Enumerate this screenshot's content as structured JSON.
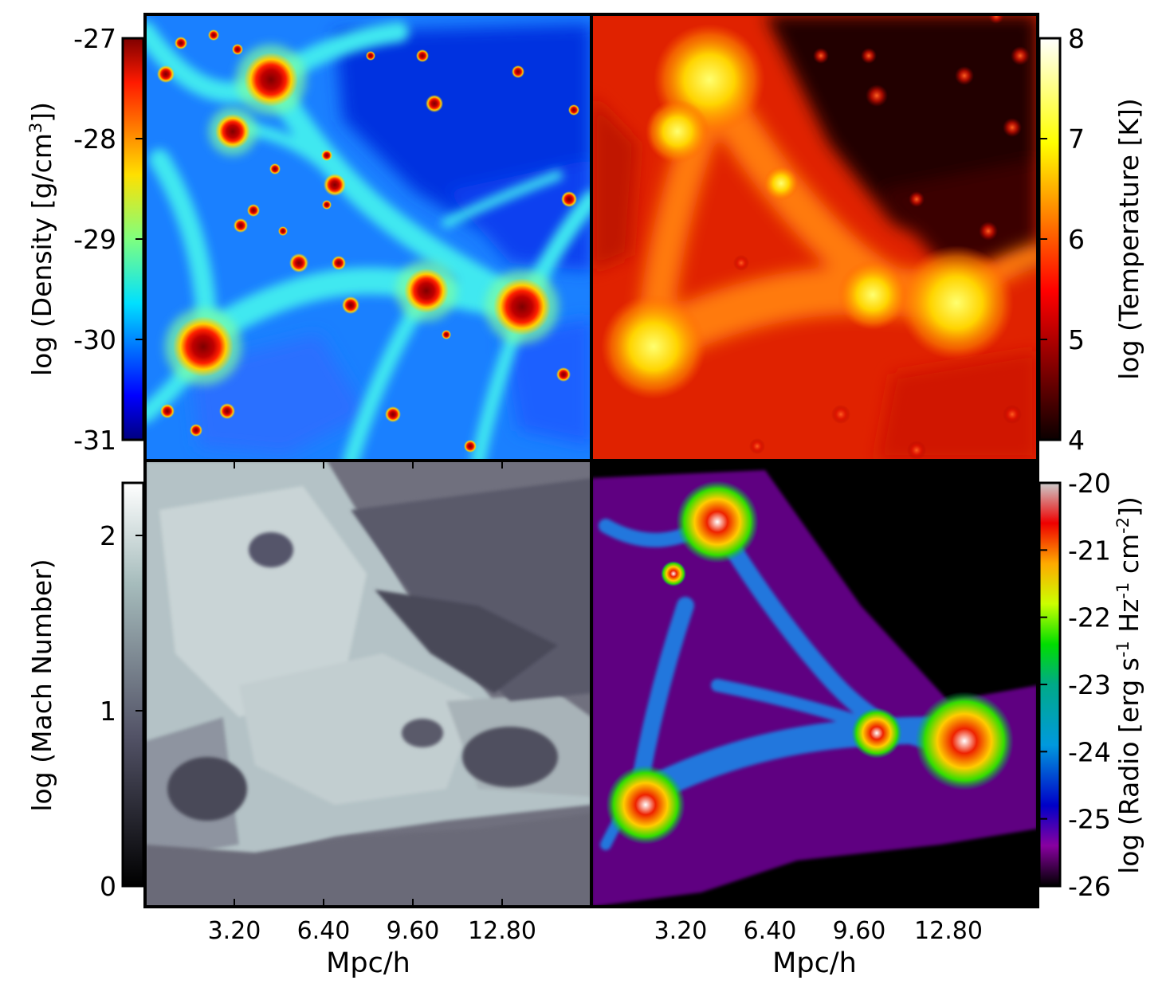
{
  "chart_data": [
    {
      "type": "heatmap",
      "panel": "top-left",
      "quantity": "density",
      "colormap": "jet",
      "colorbar_side": "left",
      "colorbar_label_parts": [
        "log (Density [g/cm",
        "3",
        "])"
      ],
      "colorbar_range": [
        -31,
        -27
      ],
      "colorbar_ticks": [
        "-27",
        "-28",
        "-29",
        "-30",
        "-31"
      ],
      "xticks": []
    },
    {
      "type": "heatmap",
      "panel": "top-right",
      "quantity": "temperature",
      "colormap": "hot",
      "colorbar_side": "right",
      "colorbar_label": "log (Temperature [K])",
      "colorbar_range": [
        4,
        8
      ],
      "colorbar_ticks": [
        "8",
        "7",
        "6",
        "5",
        "4"
      ],
      "xticks": []
    },
    {
      "type": "heatmap",
      "panel": "bottom-left",
      "quantity": "mach",
      "colormap": "bone",
      "colorbar_side": "left",
      "colorbar_label": "log (Mach Number)",
      "colorbar_range": [
        0,
        2.3
      ],
      "colorbar_ticks": [
        "2",
        "1",
        "0"
      ],
      "xticks": [
        "3.20",
        "6.40",
        "9.60",
        "12.80"
      ],
      "xlabel": "Mpc/h"
    },
    {
      "type": "heatmap",
      "panel": "bottom-right",
      "quantity": "radio",
      "colormap": "spectral",
      "colorbar_side": "right",
      "colorbar_label_parts": [
        "log (Radio [erg s",
        "-1",
        " Hz",
        "-1",
        " cm",
        "-2",
        "])"
      ],
      "colorbar_range": [
        -26,
        -20
      ],
      "colorbar_ticks": [
        "-20",
        "-21",
        "-22",
        "-23",
        "-24",
        "-25",
        "-26"
      ],
      "xticks": [
        "3.20",
        "6.40",
        "9.60",
        "12.80"
      ],
      "xlabel": "Mpc/h"
    }
  ]
}
